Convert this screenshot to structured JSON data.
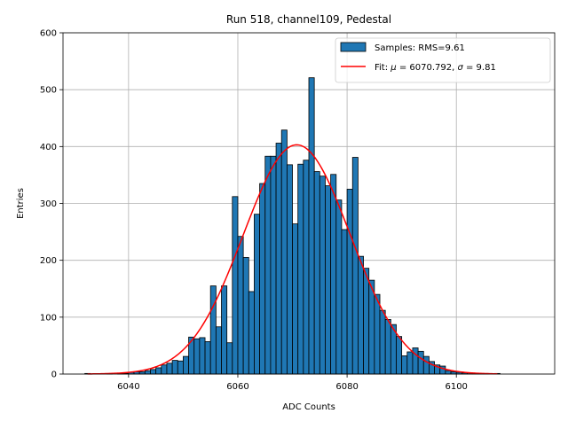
{
  "chart_data": {
    "type": "bar",
    "title": "Run 518, channel109, Pedestal",
    "xlabel": "ADC Counts",
    "ylabel": "Entries",
    "xlim": [
      6028,
      6118
    ],
    "ylim": [
      0,
      600
    ],
    "xticks": [
      6040,
      6060,
      6080,
      6100
    ],
    "yticks": [
      0,
      100,
      200,
      300,
      400,
      500,
      600
    ],
    "grid": true,
    "legend_position": "top-right",
    "bin_start": 6032,
    "bin_width": 1,
    "histogram": {
      "name": "Samples: RMS=9.61",
      "color": "#1f77b4",
      "edgecolor": "#000000",
      "counts": [
        1,
        0,
        0,
        0,
        1,
        0,
        1,
        1,
        3,
        4,
        4,
        6,
        8,
        11,
        16,
        19,
        24,
        23,
        31,
        65,
        62,
        64,
        57,
        155,
        83,
        155,
        55,
        312,
        242,
        205,
        145,
        281,
        335,
        383,
        383,
        406,
        429,
        368,
        264,
        369,
        376,
        521,
        356,
        348,
        331,
        351,
        306,
        254,
        325,
        381,
        207,
        186,
        165,
        140,
        112,
        96,
        87,
        66,
        32,
        39,
        46,
        40,
        31,
        22,
        16,
        14,
        6,
        4,
        3,
        2,
        2,
        1,
        1,
        1,
        0,
        1
      ]
    },
    "fit": {
      "name": "Fit: μ = 6070.792, σ = 9.81",
      "color": "#ff0000",
      "mu": 6070.792,
      "sigma": 9.81,
      "amplitude": 403,
      "x_range": [
        6032.5,
        6107.5
      ]
    }
  },
  "labels": {
    "title": "Run 518, channel109, Pedestal",
    "xlabel": "ADC Counts",
    "ylabel": "Entries",
    "legend_samples": "Samples: RMS=9.61",
    "legend_fit_prefix": "Fit: ",
    "legend_mu": "μ",
    "legend_mu_value": " = 6070.792, ",
    "legend_sigma": "σ",
    "legend_sigma_value": " = 9.81"
  }
}
